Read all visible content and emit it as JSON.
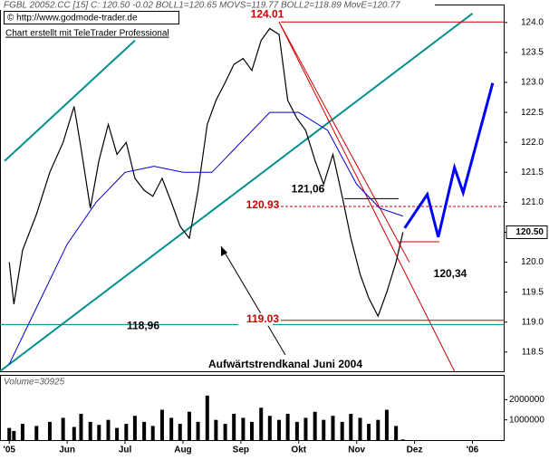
{
  "chart_data": {
    "type": "line",
    "header": "FGBL 20052.CC [15] C: 120.50 -0.02 BOLL1=120.65 MOVS=119.77 BOLL2=118.89 MovE=120.77",
    "copyright": "© http://www.godmode-trader.de",
    "credit": "Chart erstellt mit TeleTrader Professional",
    "x": [
      0.0,
      0.08,
      0.23,
      0.47,
      0.7,
      0.93,
      1.12,
      1.24,
      1.4,
      1.55,
      1.71,
      1.86,
      2.02,
      2.17,
      2.33,
      2.48,
      2.64,
      2.8,
      2.95,
      3.11,
      3.26,
      3.42,
      3.57,
      3.73,
      3.88,
      4.04,
      4.19,
      4.35,
      4.5,
      4.66,
      4.81,
      4.97,
      5.12,
      5.28,
      5.43,
      5.59,
      5.75,
      5.9,
      6.06,
      6.21,
      6.37,
      6.52,
      6.68,
      6.8
    ],
    "xlim": [
      -0.16,
      8.54
    ],
    "xticks": [
      {
        "value": 0,
        "label": "'05"
      },
      {
        "value": 1,
        "label": "Jun"
      },
      {
        "value": 2,
        "label": "Jul"
      },
      {
        "value": 3,
        "label": "Aug"
      },
      {
        "value": 4,
        "label": "Sep"
      },
      {
        "value": 5,
        "label": "Okt"
      },
      {
        "value": 6,
        "label": "Nov"
      },
      {
        "value": 7,
        "label": "Dez"
      },
      {
        "value": 8,
        "label": "'06"
      }
    ],
    "ylim": [
      118.18,
      124.3
    ],
    "yticks": [
      118.5,
      {
        "value": 119,
        "label": "119.0"
      },
      119.5,
      {
        "value": 120,
        "label": "120.0"
      },
      120.5,
      {
        "value": 121,
        "label": "121.0"
      },
      121.5,
      {
        "value": 122,
        "label": "122.0"
      },
      122.5,
      {
        "value": 123,
        "label": "123.0"
      },
      123.5,
      {
        "value": 124,
        "label": "124.0"
      }
    ],
    "series": [
      {
        "name": "FGBL",
        "color": "#000000",
        "values": [
          120.0,
          119.3,
          120.2,
          120.8,
          121.5,
          122.0,
          122.6,
          121.9,
          120.9,
          121.7,
          122.3,
          121.8,
          122.0,
          121.4,
          121.2,
          121.1,
          121.4,
          121.0,
          120.6,
          120.4,
          121.2,
          122.3,
          122.7,
          123.0,
          123.3,
          123.4,
          123.2,
          123.7,
          123.9,
          123.8,
          122.7,
          122.4,
          122.2,
          121.7,
          121.3,
          121.8,
          121.1,
          120.4,
          119.8,
          119.4,
          119.1,
          119.5,
          120.0,
          120.5
        ]
      }
    ],
    "ma": {
      "color": "#0000cc",
      "x": [
        0,
        0.5,
        1,
        1.5,
        2,
        2.5,
        3,
        3.5,
        4,
        4.5,
        5,
        5.5,
        6,
        6.4,
        6.8
      ],
      "values": [
        118.3,
        119.3,
        120.3,
        121.0,
        121.5,
        121.6,
        121.5,
        121.5,
        122.0,
        122.5,
        122.5,
        122.2,
        121.3,
        120.9,
        120.77
      ]
    },
    "forecast": {
      "color": "#0000ff",
      "x": [
        6.83,
        7.22,
        7.41,
        7.69,
        7.84,
        8.35
      ],
      "values": [
        120.57,
        121.13,
        120.42,
        121.58,
        121.16,
        122.99
      ]
    },
    "last_price": {
      "value": 120.5,
      "label": "120.50"
    },
    "levels": [
      {
        "value": 124.01,
        "label": "124.01",
        "color": "#cc0000"
      },
      {
        "value": 120.93,
        "label": "120.93",
        "color": "#cc0000",
        "dashed": true
      },
      {
        "value": 119.03,
        "label": "119.03",
        "color": "#cc0000"
      },
      {
        "value": 118.96,
        "label": "118,96",
        "color": "#008080"
      },
      {
        "value": 121.06,
        "label": "121,06",
        "color": "#000000"
      },
      {
        "value": 120.34,
        "label": "120,34",
        "color": "#cc0000"
      }
    ],
    "trendlines": [
      {
        "color": "#009090",
        "x": [
          -0.16,
          8.0
        ],
        "y": [
          118.18,
          124.15
        ]
      },
      {
        "color": "#009090",
        "x": [
          -0.08,
          2.17
        ],
        "y": [
          121.69,
          123.7
        ]
      },
      {
        "color": "#cc0000",
        "x": [
          4.66,
          7.69
        ],
        "y": [
          124.01,
          118.18
        ]
      },
      {
        "color": "#cc0000",
        "x": [
          4.66,
          6.91
        ],
        "y": [
          124.01,
          120.0
        ]
      }
    ],
    "annotation": "Aufwärtstrendkanal Juni 2004",
    "volume": {
      "label": "Volume=30925",
      "ylim": [
        0,
        3180000
      ],
      "yticks": [
        1000000,
        2000000
      ],
      "color": "#000000",
      "values": [
        600000,
        450000,
        800000,
        700000,
        900000,
        1100000,
        650000,
        1300000,
        900000,
        750000,
        1000000,
        600000,
        800000,
        1200000,
        900000,
        700000,
        1500000,
        1100000,
        800000,
        1400000,
        900000,
        2200000,
        1000000,
        800000,
        1300000,
        1100000,
        900000,
        1600000,
        1200000,
        1000000,
        1300000,
        900000,
        1100000,
        1400000,
        1000000,
        1200000,
        900000,
        1300000,
        1100000,
        800000,
        1000000,
        1500000,
        700000,
        30925
      ]
    }
  }
}
